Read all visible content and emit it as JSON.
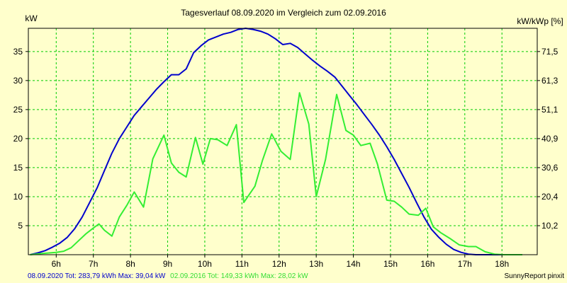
{
  "chart_data": {
    "type": "line",
    "title": "Tagesverlauf 08.09.2020 im Vergleich zum 02.09.2016",
    "ylabel_left": "kW",
    "ylabel_right": "kW/kWp [%]",
    "xlim": [
      5.25,
      18.95
    ],
    "ylim": [
      0,
      39
    ],
    "x_ticks": [
      6,
      7,
      8,
      9,
      10,
      11,
      12,
      13,
      14,
      15,
      16,
      17,
      18
    ],
    "x_tick_labels": [
      "6h",
      "7h",
      "8h",
      "9h",
      "10h",
      "11h",
      "12h",
      "13h",
      "14h",
      "15h",
      "16h",
      "17h",
      "18h"
    ],
    "y_ticks_left": [
      5,
      10,
      15,
      20,
      25,
      30,
      35
    ],
    "y_tick_labels_left": [
      "5",
      "10",
      "15",
      "20",
      "25",
      "30",
      "35"
    ],
    "y_ticks_right": [
      5,
      10,
      15,
      20,
      25,
      30,
      35
    ],
    "y_tick_labels_right": [
      "10,2",
      "20,4",
      "30,6",
      "40,9",
      "51,1",
      "61,3",
      "71,5"
    ],
    "grid": true,
    "colors": {
      "background": "#ffffcc",
      "grid": "#00cc00",
      "series1": "#0000cc",
      "series2": "#33ee33",
      "axis": "#000000"
    },
    "series": [
      {
        "color": "#0000cc",
        "x": [
          5.3,
          5.5,
          5.7,
          5.9,
          6.1,
          6.3,
          6.5,
          6.7,
          6.9,
          7.1,
          7.3,
          7.5,
          7.7,
          7.9,
          8.1,
          8.3,
          8.5,
          8.7,
          8.9,
          9.1,
          9.3,
          9.5,
          9.7,
          9.9,
          10.1,
          10.3,
          10.5,
          10.7,
          10.9,
          11.1,
          11.3,
          11.5,
          11.7,
          11.9,
          12.1,
          12.3,
          12.5,
          12.7,
          12.9,
          13.1,
          13.3,
          13.5,
          13.7,
          13.9,
          14.1,
          14.3,
          14.5,
          14.7,
          14.9,
          15.1,
          15.3,
          15.5,
          15.7,
          15.9,
          16.1,
          16.3,
          16.5,
          16.7,
          16.9,
          17.1,
          17.3,
          17.5,
          17.7,
          17.9,
          18.1,
          18.3
        ],
        "y": [
          0,
          0.3,
          0.7,
          1.3,
          2.0,
          3.0,
          4.5,
          6.5,
          9.0,
          11.5,
          14.5,
          17.5,
          20.0,
          22.0,
          24.0,
          25.5,
          27.0,
          28.5,
          29.8,
          31.0,
          31.0,
          32.0,
          34.8,
          36.0,
          37.0,
          37.5,
          38.0,
          38.3,
          38.8,
          39.0,
          38.8,
          38.5,
          38.0,
          37.2,
          36.2,
          36.4,
          35.7,
          34.6,
          33.5,
          32.5,
          31.6,
          30.6,
          29.0,
          27.4,
          25.8,
          24.1,
          22.4,
          20.6,
          18.6,
          16.4,
          14.0,
          11.6,
          9.0,
          6.5,
          4.4,
          3.0,
          1.8,
          0.9,
          0.4,
          0.1,
          0,
          0,
          0,
          0,
          0,
          0
        ]
      },
      {
        "color": "#33ee33",
        "x": [
          5.3,
          5.6,
          6.0,
          6.2,
          6.4,
          6.6,
          6.8,
          7.0,
          7.15,
          7.3,
          7.5,
          7.7,
          7.9,
          8.1,
          8.35,
          8.6,
          8.9,
          9.1,
          9.3,
          9.5,
          9.75,
          9.95,
          10.15,
          10.35,
          10.6,
          10.85,
          11.05,
          11.35,
          11.55,
          11.8,
          12.05,
          12.3,
          12.55,
          12.8,
          13.0,
          13.25,
          13.55,
          13.8,
          14.0,
          14.2,
          14.45,
          14.65,
          14.9,
          15.1,
          15.3,
          15.5,
          15.75,
          15.95,
          16.15,
          16.35,
          16.6,
          16.85,
          17.1,
          17.3,
          17.55,
          17.8,
          18.05,
          18.3,
          18.55
        ],
        "y": [
          0,
          0.2,
          0.4,
          0.6,
          1.2,
          2.4,
          3.6,
          4.6,
          5.3,
          4.2,
          3.2,
          6.5,
          8.5,
          10.8,
          8.2,
          16.5,
          20.6,
          15.8,
          14.2,
          13.4,
          20.2,
          15.6,
          20.0,
          19.8,
          18.8,
          22.4,
          9.0,
          11.8,
          16.2,
          20.8,
          17.8,
          16.4,
          27.9,
          22.5,
          10.0,
          16.4,
          27.6,
          21.4,
          20.6,
          18.8,
          19.2,
          15.6,
          9.4,
          9.2,
          8.2,
          7.0,
          6.8,
          8.0,
          4.8,
          3.8,
          2.8,
          1.7,
          1.4,
          1.4,
          0.5,
          0.1,
          0,
          0,
          0
        ]
      }
    ]
  },
  "footer": {
    "series1_legend": "08.09.2020 Tot: 283,79 kWh Max: 39,04 kW",
    "series2_legend": "02.09.2016 Tot: 149,33 kWh Max: 28,02 kW",
    "credit": "SunnyReport pinxit"
  }
}
